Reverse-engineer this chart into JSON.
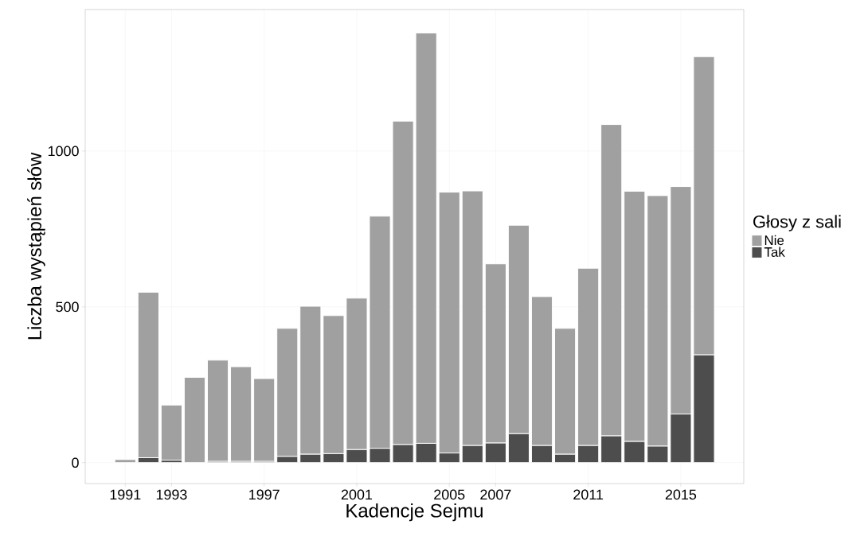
{
  "chart_data": {
    "type": "bar",
    "stacked": true,
    "xlabel": "Kadencje Sejmu",
    "ylabel": "Liczba wystąpień słów",
    "legend_title": "Głosy z sali",
    "legend": "right",
    "grid": true,
    "x": [
      1991,
      1992,
      1993,
      1994,
      1995,
      1996,
      1997,
      1998,
      1999,
      2000,
      2001,
      2002,
      2003,
      2004,
      2005,
      2006,
      2007,
      2008,
      2009,
      2010,
      2011,
      2012,
      2013,
      2014,
      2015,
      2016
    ],
    "xlim": [
      1989.27,
      2017.72
    ],
    "xticks": [
      1991,
      1993,
      1997,
      2001,
      2005,
      2007,
      2011,
      2015
    ],
    "ylim": [
      -67,
      1454
    ],
    "yticks": [
      0,
      500,
      1000
    ],
    "series": [
      {
        "name": "Tak",
        "color": "#4d4d4d",
        "values": [
          0,
          16,
          8,
          0,
          4,
          4,
          4,
          20,
          27,
          29,
          42,
          46,
          58,
          62,
          31,
          55,
          63,
          93,
          55,
          27,
          55,
          86,
          68,
          53,
          156,
          346
        ]
      },
      {
        "name": "Nie",
        "color": "#a0a0a0",
        "values": [
          10,
          531,
          177,
          274,
          325,
          304,
          266,
          411,
          475,
          443,
          486,
          745,
          1038,
          1317,
          837,
          817,
          575,
          669,
          478,
          404,
          569,
          999,
          803,
          804,
          730,
          957
        ]
      }
    ]
  }
}
